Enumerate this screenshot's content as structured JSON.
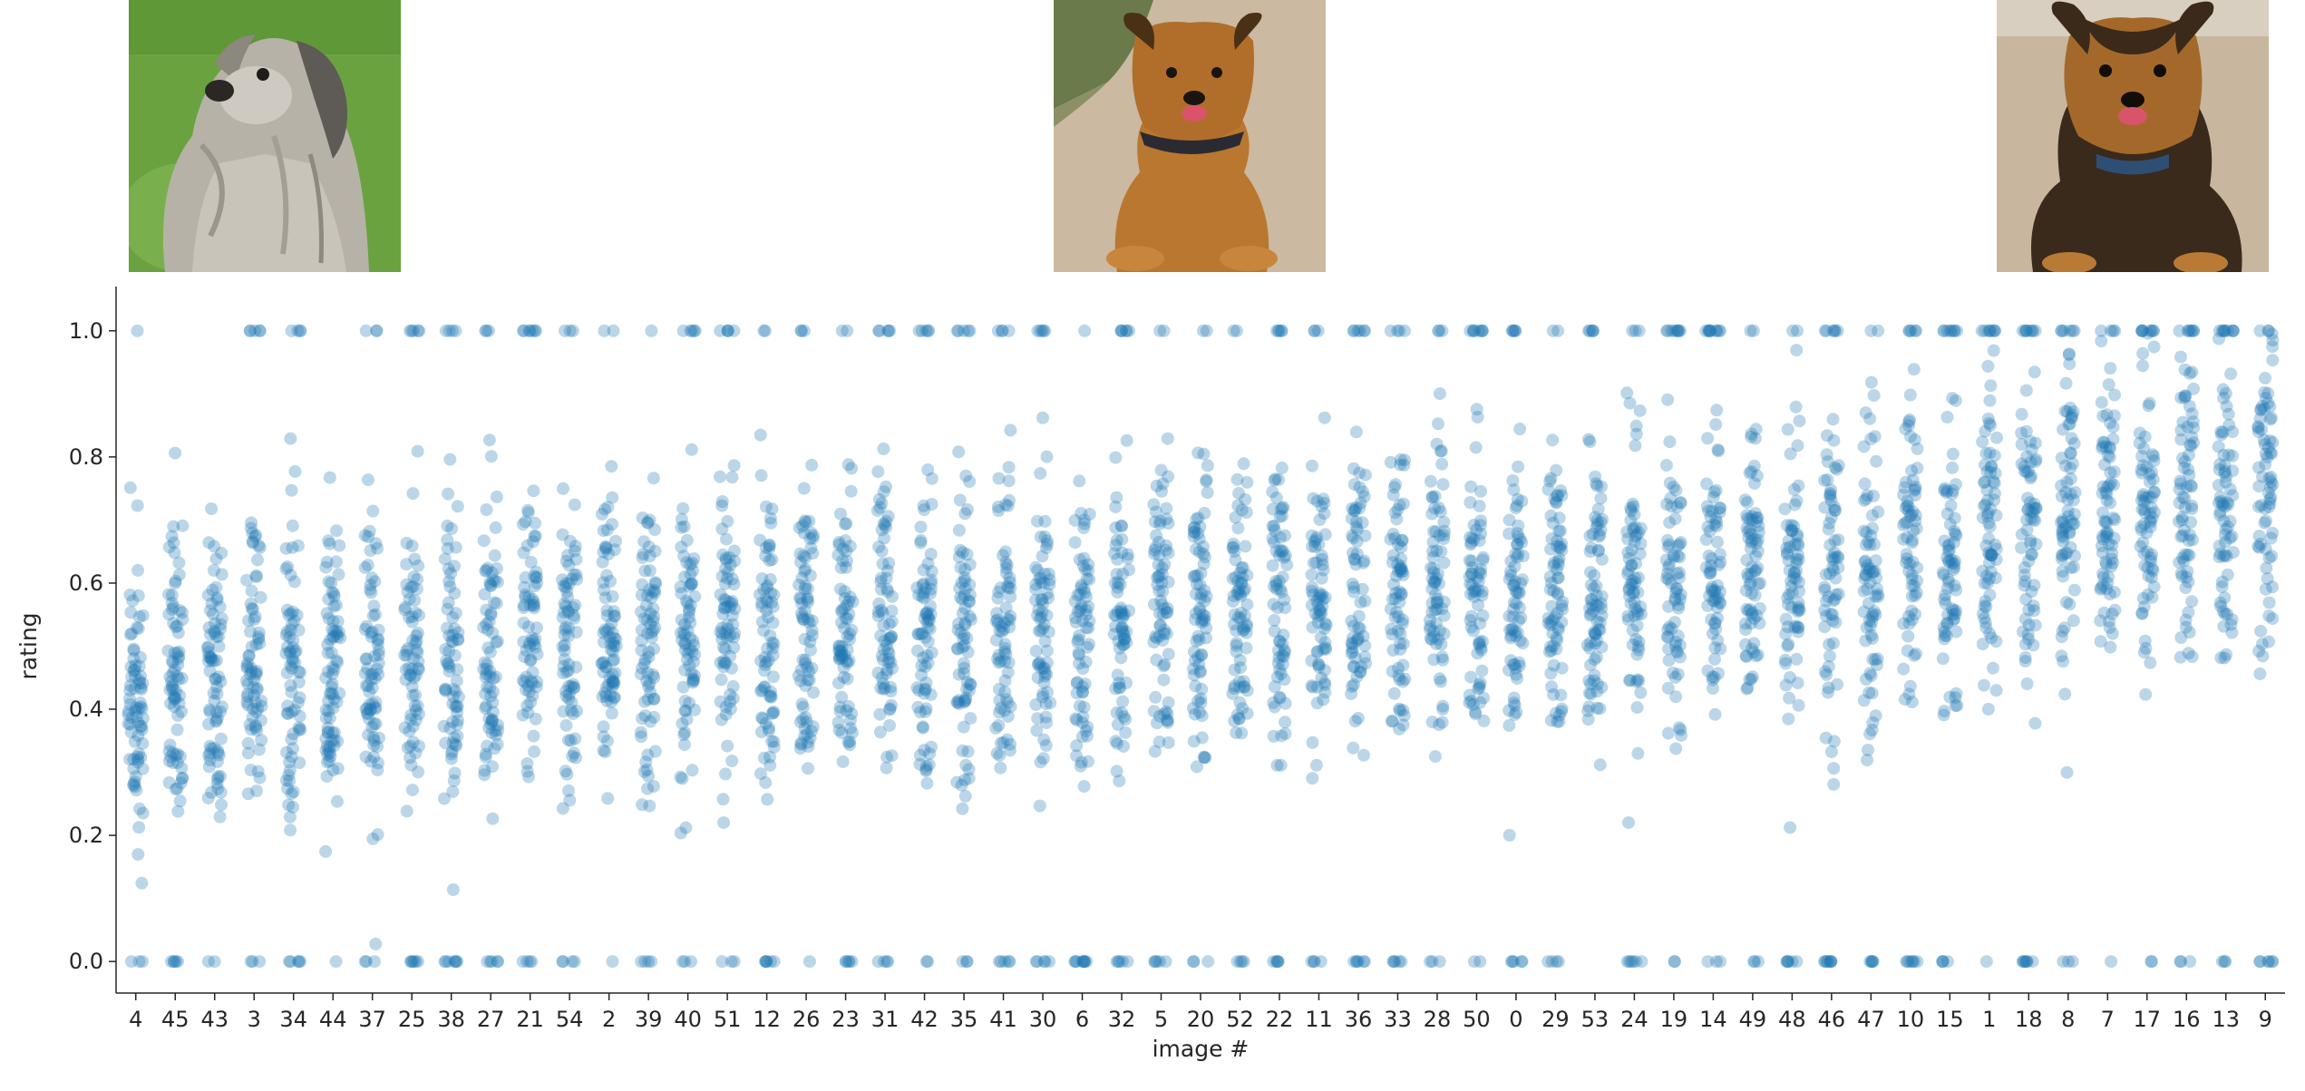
{
  "chart_data": {
    "type": "scatter",
    "style": "strip plot with jitter",
    "xlabel": "image #",
    "ylabel": "rating",
    "categories": [
      "4",
      "45",
      "43",
      "3",
      "34",
      "44",
      "37",
      "25",
      "38",
      "27",
      "21",
      "54",
      "2",
      "39",
      "40",
      "51",
      "12",
      "26",
      "23",
      "31",
      "42",
      "35",
      "41",
      "30",
      "6",
      "32",
      "5",
      "20",
      "52",
      "22",
      "11",
      "36",
      "33",
      "28",
      "50",
      "0",
      "29",
      "53",
      "24",
      "19",
      "14",
      "49",
      "48",
      "46",
      "47",
      "10",
      "15",
      "1",
      "18",
      "8",
      "7",
      "17",
      "16",
      "13",
      "9"
    ],
    "category_mean_rating": [
      0.42,
      0.45,
      0.46,
      0.48,
      0.47,
      0.48,
      0.47,
      0.47,
      0.48,
      0.49,
      0.5,
      0.5,
      0.51,
      0.5,
      0.51,
      0.52,
      0.52,
      0.52,
      0.53,
      0.53,
      0.53,
      0.53,
      0.54,
      0.54,
      0.55,
      0.55,
      0.56,
      0.56,
      0.56,
      0.57,
      0.57,
      0.57,
      0.56,
      0.57,
      0.57,
      0.58,
      0.58,
      0.59,
      0.6,
      0.6,
      0.61,
      0.61,
      0.62,
      0.62,
      0.63,
      0.64,
      0.65,
      0.68,
      0.69,
      0.7,
      0.71,
      0.72,
      0.73,
      0.73,
      0.74
    ],
    "points_per_category": 80,
    "ylim": [
      -0.05,
      1.05
    ],
    "yticks": [
      0.0,
      0.2,
      0.4,
      0.6,
      0.8,
      1.0
    ],
    "ytick_labels": [
      "0.0",
      "0.2",
      "0.4",
      "0.6",
      "0.8",
      "1.0"
    ],
    "point_color": "#1f77b4",
    "point_opacity": 0.3,
    "grid": false,
    "legend": "none"
  },
  "thumbnails": [
    {
      "subject": "long-haired grey terrier on grass",
      "palette": [
        "#6aa240",
        "#b9b4aa"
      ]
    },
    {
      "subject": "brown puppy sitting on pavement",
      "palette": [
        "#cbb9a1",
        "#b9772f"
      ]
    },
    {
      "subject": "black-and-tan dog lying on pavement",
      "palette": [
        "#c8b79e",
        "#a4692a"
      ]
    }
  ]
}
